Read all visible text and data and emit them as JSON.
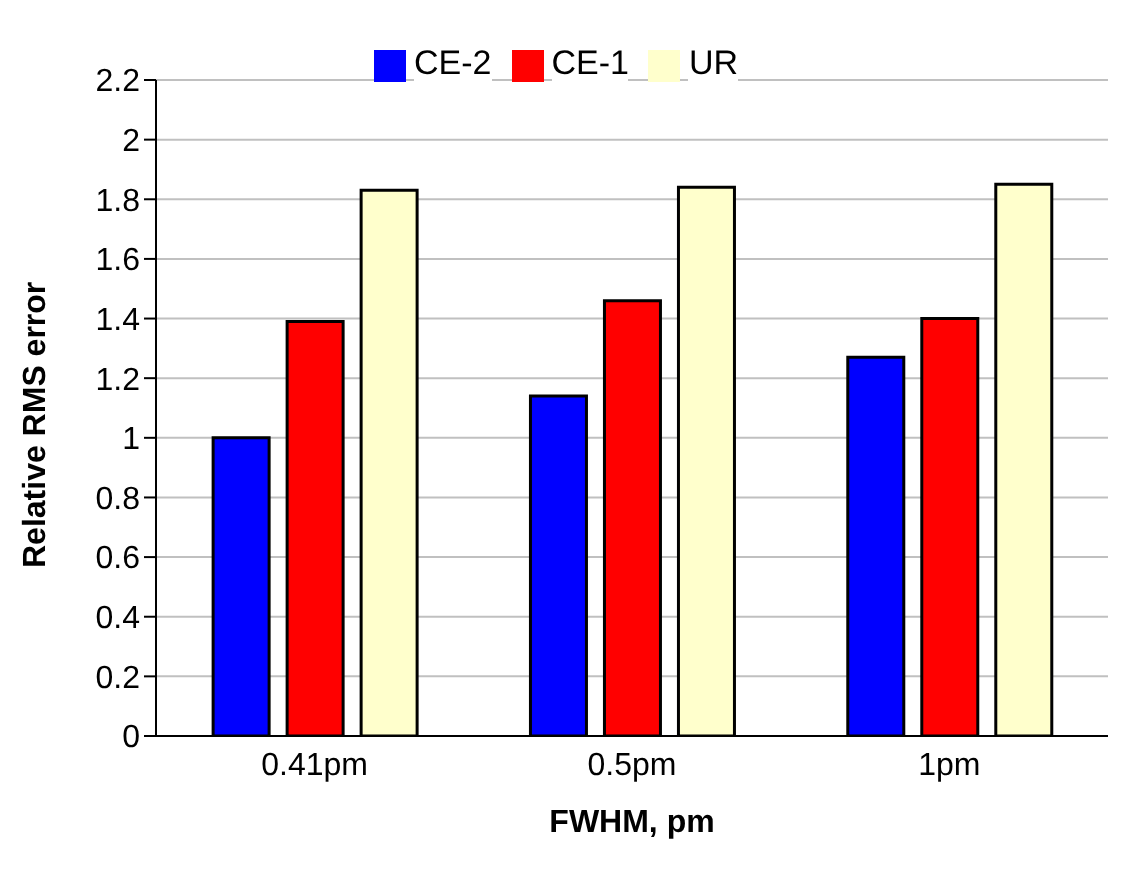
{
  "chart_data": {
    "type": "bar",
    "xlabel": "FWHM, pm",
    "ylabel": "Relative RMS error",
    "categories": [
      "0.41pm",
      "0.5pm",
      "1pm"
    ],
    "series": [
      {
        "name": "CE-2",
        "color": "#0000ff",
        "values": [
          1.0,
          1.14,
          1.27
        ]
      },
      {
        "name": "CE-1",
        "color": "#ff0000",
        "values": [
          1.39,
          1.46,
          1.4
        ]
      },
      {
        "name": "UR",
        "color": "#ffffcc",
        "values": [
          1.83,
          1.84,
          1.85
        ]
      }
    ],
    "ylim": [
      0,
      2.2
    ],
    "yticks": [
      0,
      0.2,
      0.4,
      0.6,
      0.8,
      1,
      1.2,
      1.4,
      1.6,
      1.8,
      2,
      2.2
    ],
    "grid": "y",
    "legend": "top"
  }
}
